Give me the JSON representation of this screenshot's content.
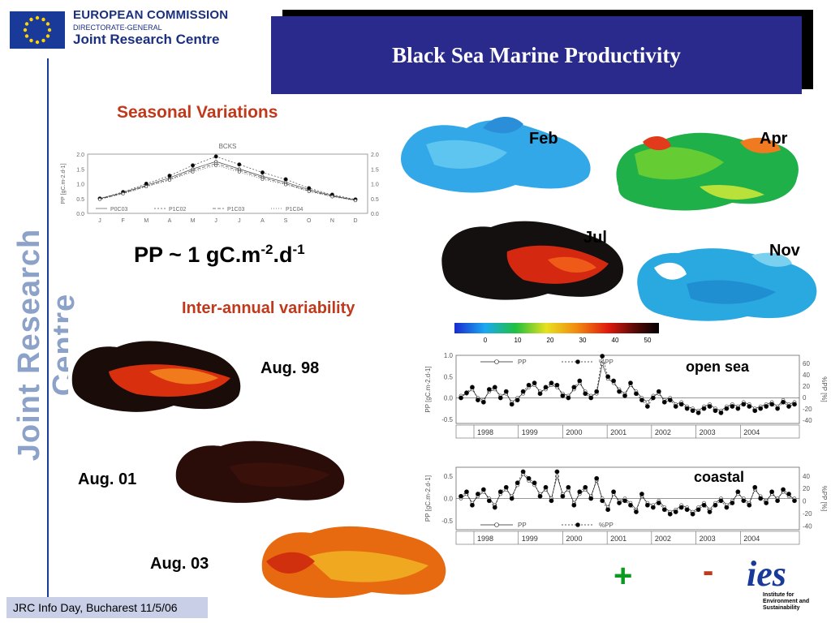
{
  "header": {
    "org_line1": "EUROPEAN COMMISSION",
    "org_line2": "DIRECTORATE-GENERAL",
    "org_line3": "Joint Research Centre",
    "title": "Black Sea Marine Productivity",
    "side_text": "Joint Research Centre"
  },
  "seasonal": {
    "heading": "Seasonal Variations",
    "formula": {
      "base": "PP ~ 1 gC.m",
      "exp1": "-2",
      "mid": ".d",
      "exp2": "-1"
    }
  },
  "interannual": {
    "heading": "Inter-annual variability"
  },
  "maps": {
    "feb": "Feb",
    "apr": "Apr",
    "jul": "Jul",
    "nov": "Nov",
    "aug98": "Aug. 98",
    "aug01": "Aug. 01",
    "aug03": "Aug. 03"
  },
  "colorbar": {
    "ticks": [
      "0",
      "10",
      "20",
      "30",
      "40",
      "50",
      "60"
    ]
  },
  "panels": {
    "open_sea": "open sea",
    "coastal": "coastal"
  },
  "signs": {
    "plus": "+",
    "minus": "-"
  },
  "ies_logo": {
    "text": "ies",
    "sub1": "Institute for",
    "sub2": "Environment and",
    "sub3": "Sustainability"
  },
  "footer": {
    "text": "JRC Info Day, Bucharest 11/5/06"
  },
  "chart_data": [
    {
      "type": "line",
      "title": "BCKS",
      "categories": [
        "J",
        "F",
        "M",
        "A",
        "M",
        "J",
        "J",
        "A",
        "S",
        "O",
        "N",
        "D"
      ],
      "ylabel": "PP [gC.m-2.d-1]",
      "ylim": [
        0,
        2.0
      ],
      "yticks": [
        "0.0",
        "0.5",
        "1.0",
        "1.5",
        "2.0"
      ],
      "legend": [
        "P0C03",
        "P1C02",
        "P1C03",
        "P1C04"
      ],
      "series": [
        {
          "name": "P0C03",
          "values": [
            0.5,
            0.7,
            0.95,
            1.2,
            1.5,
            1.75,
            1.5,
            1.25,
            1.05,
            0.8,
            0.6,
            0.45
          ]
        },
        {
          "name": "P1C02",
          "values": [
            0.5,
            0.72,
            1.0,
            1.27,
            1.62,
            1.92,
            1.65,
            1.38,
            1.15,
            0.85,
            0.63,
            0.47
          ]
        },
        {
          "name": "P1C03",
          "values": [
            0.48,
            0.68,
            0.92,
            1.15,
            1.45,
            1.68,
            1.45,
            1.2,
            1.0,
            0.76,
            0.58,
            0.44
          ]
        },
        {
          "name": "P1C04",
          "values": [
            0.47,
            0.66,
            0.9,
            1.12,
            1.4,
            1.62,
            1.4,
            1.15,
            0.97,
            0.74,
            0.56,
            0.43
          ]
        }
      ]
    },
    {
      "type": "line",
      "panel": "open sea",
      "ylabel": "PP [gC.m-2.d-1]",
      "ylabel_right": "%PP [%]",
      "ylim": [
        -0.6,
        1.0
      ],
      "yticks": [
        "-0.5",
        "0.0",
        "0.5",
        "1.0"
      ],
      "yticks_right": [
        "-40",
        "-20",
        "0",
        "20",
        "40",
        "60"
      ],
      "years": [
        "1998",
        "1999",
        "2000",
        "2001",
        "2002",
        "2003",
        "2004"
      ],
      "legend": [
        "PP",
        "%PP"
      ],
      "series": [
        {
          "name": "PP",
          "values": [
            0.05,
            0.1,
            0.2,
            0.0,
            -0.05,
            0.15,
            0.2,
            0.05,
            0.1,
            -0.1,
            0.0,
            0.1,
            0.25,
            0.3,
            0.15,
            0.2,
            0.3,
            0.25,
            0.1,
            0.05,
            0.2,
            0.35,
            0.15,
            0.05,
            0.1,
            0.8,
            0.45,
            0.35,
            0.2,
            0.1,
            0.3,
            0.15,
            0.0,
            -0.1,
            0.05,
            0.1,
            -0.05,
            0.0,
            -0.15,
            -0.1,
            -0.2,
            -0.25,
            -0.3,
            -0.2,
            -0.15,
            -0.25,
            -0.3,
            -0.2,
            -0.15,
            -0.2,
            -0.1,
            -0.15,
            -0.25,
            -0.2,
            -0.15,
            -0.1,
            -0.2,
            -0.05,
            -0.15,
            -0.1
          ]
        },
        {
          "name": "%PP",
          "values": [
            0.0,
            0.12,
            0.25,
            -0.05,
            -0.1,
            0.2,
            0.25,
            0.0,
            0.15,
            -0.15,
            -0.05,
            0.15,
            0.3,
            0.35,
            0.1,
            0.25,
            0.35,
            0.3,
            0.05,
            0.0,
            0.25,
            0.4,
            0.1,
            0.0,
            0.15,
            0.98,
            0.5,
            0.4,
            0.15,
            0.05,
            0.35,
            0.1,
            -0.05,
            -0.2,
            0.0,
            0.15,
            -0.1,
            -0.05,
            -0.2,
            -0.15,
            -0.25,
            -0.3,
            -0.35,
            -0.25,
            -0.2,
            -0.3,
            -0.35,
            -0.25,
            -0.2,
            -0.25,
            -0.15,
            -0.2,
            -0.3,
            -0.25,
            -0.2,
            -0.15,
            -0.25,
            -0.1,
            -0.2,
            -0.15
          ]
        }
      ]
    },
    {
      "type": "line",
      "panel": "coastal",
      "ylabel": "PP [gC.m-2.d-1]",
      "ylabel_right": "%PP [%]",
      "ylim": [
        -0.7,
        0.7
      ],
      "yticks": [
        "-0.5",
        "0.0",
        "0.5"
      ],
      "yticks_right": [
        "-40",
        "-20",
        "0",
        "20",
        "40"
      ],
      "years": [
        "1998",
        "1999",
        "2000",
        "2001",
        "2002",
        "2003",
        "2004"
      ],
      "legend": [
        "PP",
        "%PP"
      ],
      "series": [
        {
          "name": "PP",
          "values": [
            0.0,
            0.1,
            -0.1,
            0.05,
            0.15,
            0.0,
            -0.15,
            0.1,
            0.2,
            0.05,
            0.3,
            0.55,
            0.4,
            0.3,
            0.1,
            0.2,
            0.0,
            0.5,
            0.1,
            0.2,
            -0.1,
            0.1,
            0.2,
            0.05,
            0.4,
            0.0,
            -0.2,
            0.1,
            -0.05,
            0.0,
            -0.1,
            -0.25,
            0.05,
            -0.1,
            -0.15,
            -0.05,
            -0.2,
            -0.3,
            -0.25,
            -0.15,
            -0.2,
            -0.3,
            -0.2,
            -0.1,
            -0.25,
            -0.1,
            0.0,
            -0.15,
            -0.05,
            0.1,
            0.0,
            -0.1,
            0.2,
            0.05,
            -0.05,
            0.1,
            0.0,
            0.15,
            0.05,
            0.0
          ]
        },
        {
          "name": "%PP",
          "values": [
            0.05,
            0.15,
            -0.15,
            0.1,
            0.2,
            -0.05,
            -0.2,
            0.15,
            0.25,
            0.0,
            0.35,
            0.6,
            0.45,
            0.35,
            0.05,
            0.25,
            -0.05,
            0.6,
            0.05,
            0.25,
            -0.15,
            0.15,
            0.25,
            0.0,
            0.45,
            -0.05,
            -0.25,
            0.15,
            -0.1,
            -0.05,
            -0.15,
            -0.3,
            0.1,
            -0.15,
            -0.2,
            -0.1,
            -0.25,
            -0.35,
            -0.3,
            -0.2,
            -0.25,
            -0.35,
            -0.25,
            -0.15,
            -0.3,
            -0.15,
            -0.05,
            -0.2,
            -0.1,
            0.15,
            -0.05,
            -0.15,
            0.25,
            0.0,
            -0.1,
            0.15,
            -0.05,
            0.2,
            0.1,
            -0.05
          ]
        }
      ]
    }
  ]
}
